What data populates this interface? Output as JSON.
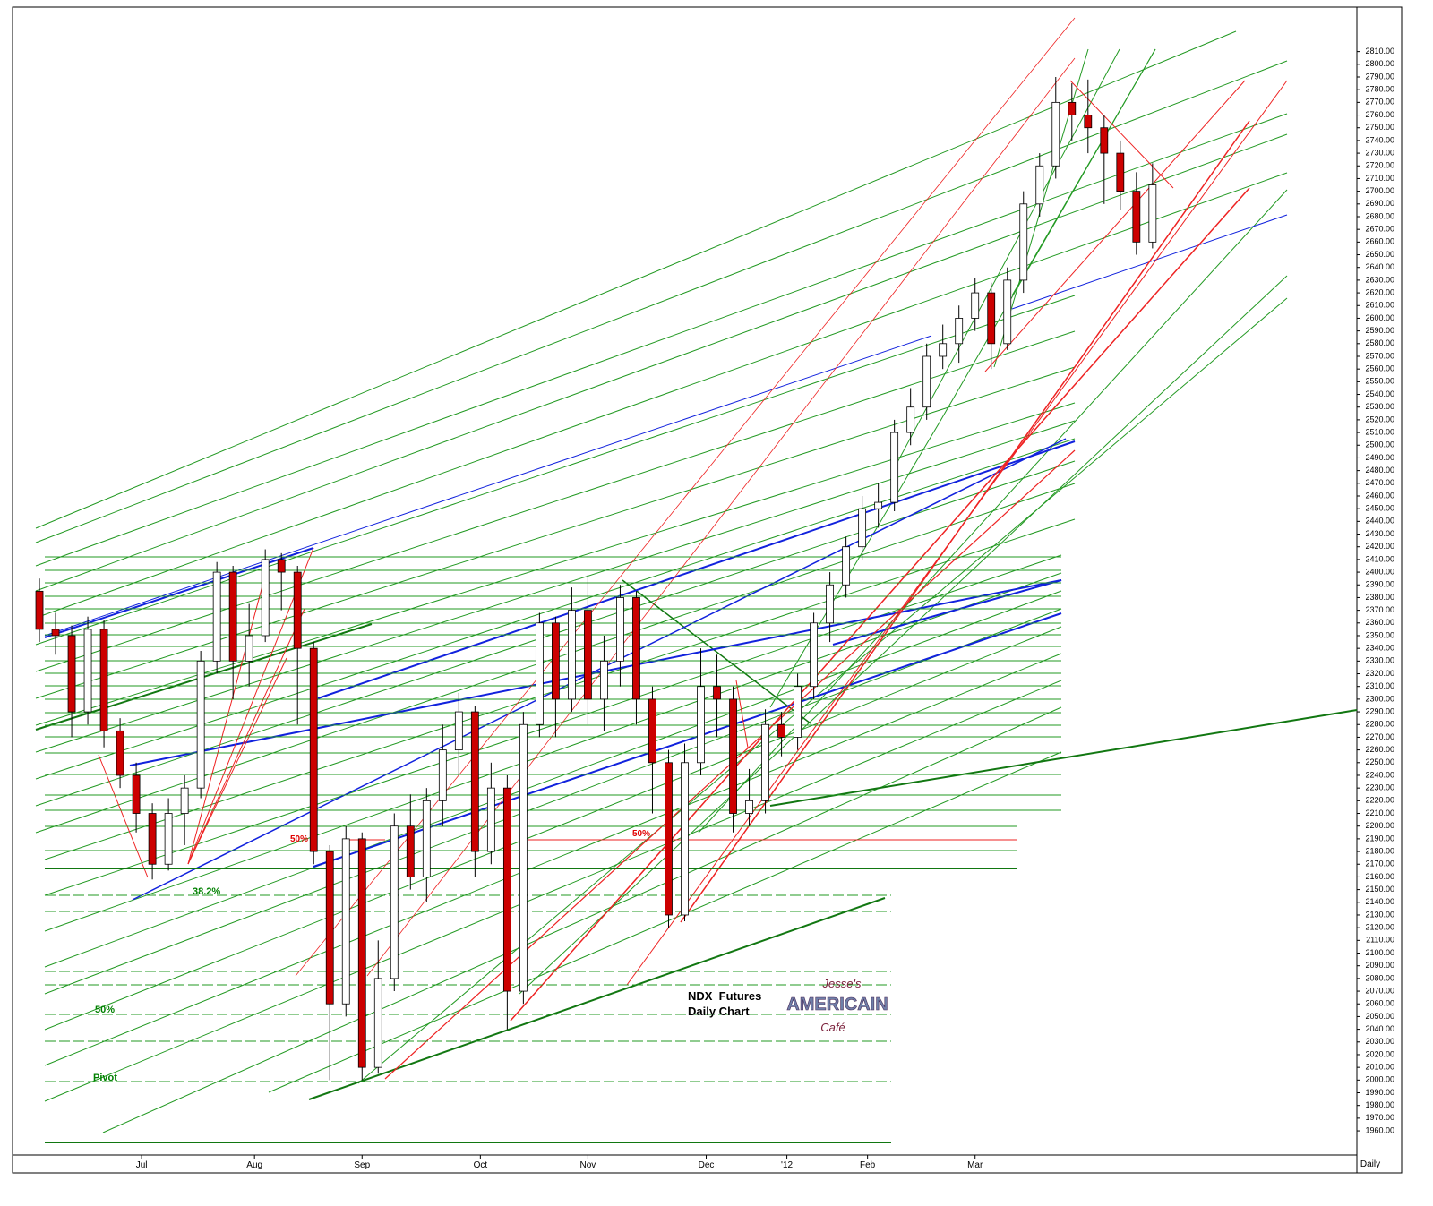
{
  "chart_data": {
    "type": "candlestick",
    "title": "NDX  Futures",
    "subtitle": "Daily Chart",
    "x_label": "Daily",
    "annotations": [
      "50%",
      "50%",
      "38.2%",
      "50%",
      "Pivot"
    ],
    "logo": {
      "line1": "Jesse's",
      "line2": "AMERICAIN",
      "line3": "Café"
    },
    "up_color": "#ffffff",
    "down_color": "#cc0000",
    "grid": false,
    "xlim": [
      0,
      250
    ],
    "ylim": [
      1941,
      2845
    ],
    "xticks": [
      {
        "value": 24,
        "label": "Jul"
      },
      {
        "value": 45,
        "label": "Aug"
      },
      {
        "value": 65,
        "label": "Sep"
      },
      {
        "value": 87,
        "label": "Oct"
      },
      {
        "value": 107,
        "label": "Nov"
      },
      {
        "value": 129,
        "label": "Dec"
      },
      {
        "value": 144,
        "label": "'12"
      },
      {
        "value": 159,
        "label": "Feb"
      },
      {
        "value": 179,
        "label": "Mar"
      }
    ],
    "yticks": [
      {
        "value": 1960,
        "label": "1960.00"
      },
      {
        "value": 1970,
        "label": "1970.00"
      },
      {
        "value": 1980,
        "label": "1980.00"
      },
      {
        "value": 1990,
        "label": "1990.00"
      },
      {
        "value": 2000,
        "label": "2000.00"
      },
      {
        "value": 2010,
        "label": "2010.00"
      },
      {
        "value": 2020,
        "label": "2020.00"
      },
      {
        "value": 2030,
        "label": "2030.00"
      },
      {
        "value": 2040,
        "label": "2040.00"
      },
      {
        "value": 2050,
        "label": "2050.00"
      },
      {
        "value": 2060,
        "label": "2060.00"
      },
      {
        "value": 2070,
        "label": "2070.00"
      },
      {
        "value": 2080,
        "label": "2080.00"
      },
      {
        "value": 2090,
        "label": "2090.00"
      },
      {
        "value": 2100,
        "label": "2100.00"
      },
      {
        "value": 2110,
        "label": "2110.00"
      },
      {
        "value": 2120,
        "label": "2120.00"
      },
      {
        "value": 2130,
        "label": "2130.00"
      },
      {
        "value": 2140,
        "label": "2140.00"
      },
      {
        "value": 2150,
        "label": "2150.00"
      },
      {
        "value": 2160,
        "label": "2160.00"
      },
      {
        "value": 2170,
        "label": "2170.00"
      },
      {
        "value": 2180,
        "label": "2180.00"
      },
      {
        "value": 2190,
        "label": "2190.00"
      },
      {
        "value": 2200,
        "label": "2200.00"
      },
      {
        "value": 2210,
        "label": "2210.00"
      },
      {
        "value": 2220,
        "label": "2220.00"
      },
      {
        "value": 2230,
        "label": "2230.00"
      },
      {
        "value": 2240,
        "label": "2240.00"
      },
      {
        "value": 2250,
        "label": "2250.00"
      },
      {
        "value": 2260,
        "label": "2260.00"
      },
      {
        "value": 2270,
        "label": "2270.00"
      },
      {
        "value": 2280,
        "label": "2280.00"
      },
      {
        "value": 2290,
        "label": "2290.00"
      },
      {
        "value": 2300,
        "label": "2300.00"
      },
      {
        "value": 2310,
        "label": "2310.00"
      },
      {
        "value": 2320,
        "label": "2320.00"
      },
      {
        "value": 2330,
        "label": "2330.00"
      },
      {
        "value": 2340,
        "label": "2340.00"
      },
      {
        "value": 2350,
        "label": "2350.00"
      },
      {
        "value": 2360,
        "label": "2360.00"
      },
      {
        "value": 2370,
        "label": "2370.00"
      },
      {
        "value": 2380,
        "label": "2380.00"
      },
      {
        "value": 2390,
        "label": "2390.00"
      },
      {
        "value": 2400,
        "label": "2400.00"
      },
      {
        "value": 2410,
        "label": "2410.00"
      },
      {
        "value": 2420,
        "label": "2420.00"
      },
      {
        "value": 2430,
        "label": "2430.00"
      },
      {
        "value": 2440,
        "label": "2440.00"
      },
      {
        "value": 2450,
        "label": "2450.00"
      },
      {
        "value": 2460,
        "label": "2460.00"
      },
      {
        "value": 2470,
        "label": "2470.00"
      },
      {
        "value": 2480,
        "label": "2480.00"
      },
      {
        "value": 2490,
        "label": "2490.00"
      },
      {
        "value": 2500,
        "label": "2500.00"
      },
      {
        "value": 2510,
        "label": "2510.00"
      },
      {
        "value": 2520,
        "label": "2520.00"
      },
      {
        "value": 2530,
        "label": "2530.00"
      },
      {
        "value": 2540,
        "label": "2540.00"
      },
      {
        "value": 2550,
        "label": "2550.00"
      },
      {
        "value": 2560,
        "label": "2560.00"
      },
      {
        "value": 2570,
        "label": "2570.00"
      },
      {
        "value": 2580,
        "label": "2580.00"
      },
      {
        "value": 2590,
        "label": "2590.00"
      },
      {
        "value": 2600,
        "label": "2600.00"
      },
      {
        "value": 2610,
        "label": "2610.00"
      },
      {
        "value": 2620,
        "label": "2620.00"
      },
      {
        "value": 2630,
        "label": "2630.00"
      },
      {
        "value": 2640,
        "label": "2640.00"
      },
      {
        "value": 2650,
        "label": "2650.00"
      },
      {
        "value": 2660,
        "label": "2660.00"
      },
      {
        "value": 2670,
        "label": "2670.00"
      },
      {
        "value": 2680,
        "label": "2680.00"
      },
      {
        "value": 2690,
        "label": "2690.00"
      },
      {
        "value": 2700,
        "label": "2700.00"
      },
      {
        "value": 2710,
        "label": "2710.00"
      },
      {
        "value": 2720,
        "label": "2720.00"
      },
      {
        "value": 2730,
        "label": "2730.00"
      },
      {
        "value": 2740,
        "label": "2740.00"
      },
      {
        "value": 2750,
        "label": "2750.00"
      },
      {
        "value": 2760,
        "label": "2760.00"
      },
      {
        "value": 2770,
        "label": "2770.00"
      },
      {
        "value": 2780,
        "label": "2780.00"
      },
      {
        "value": 2790,
        "label": "2790.00"
      },
      {
        "value": 2800,
        "label": "2800.00"
      },
      {
        "value": 2810,
        "label": "2810.00"
      }
    ],
    "x": [
      5,
      8,
      11,
      14,
      17,
      20,
      23,
      26,
      29,
      32,
      35,
      38,
      41,
      44,
      47,
      50,
      53,
      56,
      59,
      62,
      65,
      68,
      71,
      74,
      77,
      80,
      83,
      86,
      89,
      92,
      95,
      98,
      101,
      104,
      107,
      110,
      113,
      116,
      119,
      122,
      125,
      128,
      131,
      134,
      137,
      140,
      143,
      146,
      149,
      152,
      155,
      158,
      161,
      164,
      167,
      170,
      173,
      176,
      179,
      182,
      185,
      188,
      191,
      194,
      197,
      200,
      203,
      206,
      209,
      212
    ],
    "open": [
      2385,
      2355,
      2350,
      2290,
      2355,
      2275,
      2240,
      2210,
      2170,
      2210,
      2230,
      2330,
      2400,
      2330,
      2350,
      2410,
      2400,
      2340,
      2180,
      2060,
      2190,
      2010,
      2080,
      2200,
      2160,
      2220,
      2260,
      2290,
      2180,
      2230,
      2070,
      2280,
      2360,
      2300,
      2370,
      2300,
      2330,
      2380,
      2300,
      2250,
      2130,
      2250,
      2310,
      2300,
      2210,
      2220,
      2280,
      2270,
      2310,
      2360,
      2390,
      2420,
      2450,
      2455,
      2510,
      2530,
      2570,
      2580,
      2600,
      2620,
      2580,
      2630,
      2690,
      2720,
      2770,
      2760,
      2750,
      2730,
      2700,
      2660
    ],
    "high": [
      2395,
      2368,
      2358,
      2365,
      2362,
      2285,
      2250,
      2218,
      2222,
      2240,
      2338,
      2408,
      2405,
      2375,
      2418,
      2415,
      2405,
      2345,
      2185,
      2200,
      2195,
      2110,
      2210,
      2225,
      2230,
      2280,
      2305,
      2295,
      2250,
      2240,
      2290,
      2368,
      2365,
      2388,
      2398,
      2350,
      2390,
      2385,
      2310,
      2260,
      2265,
      2340,
      2335,
      2310,
      2245,
      2292,
      2290,
      2320,
      2368,
      2400,
      2428,
      2460,
      2470,
      2520,
      2545,
      2580,
      2595,
      2610,
      2632,
      2628,
      2640,
      2700,
      2730,
      2790,
      2785,
      2788,
      2760,
      2740,
      2715,
      2722
    ],
    "low": [
      2345,
      2335,
      2270,
      2280,
      2262,
      2230,
      2195,
      2158,
      2165,
      2185,
      2222,
      2320,
      2300,
      2310,
      2345,
      2370,
      2280,
      2170,
      2000,
      2050,
      2000,
      2005,
      2070,
      2150,
      2140,
      2200,
      2240,
      2160,
      2170,
      2040,
      2060,
      2270,
      2270,
      2290,
      2280,
      2275,
      2310,
      2280,
      2210,
      2120,
      2125,
      2240,
      2270,
      2195,
      2200,
      2210,
      2255,
      2260,
      2300,
      2345,
      2380,
      2410,
      2435,
      2448,
      2500,
      2520,
      2560,
      2565,
      2590,
      2560,
      2575,
      2620,
      2680,
      2710,
      2740,
      2730,
      2690,
      2685,
      2650,
      2655
    ],
    "close": [
      2355,
      2350,
      2290,
      2355,
      2275,
      2240,
      2210,
      2170,
      2210,
      2230,
      2330,
      2400,
      2330,
      2350,
      2410,
      2400,
      2340,
      2180,
      2060,
      2190,
      2010,
      2080,
      2200,
      2160,
      2220,
      2260,
      2290,
      2180,
      2230,
      2070,
      2280,
      2360,
      2300,
      2370,
      2300,
      2330,
      2380,
      2300,
      2250,
      2130,
      2250,
      2310,
      2300,
      2210,
      2220,
      2280,
      2270,
      2310,
      2360,
      2390,
      2420,
      2450,
      2455,
      2510,
      2530,
      2570,
      2580,
      2600,
      2620,
      2580,
      2630,
      2690,
      2720,
      2770,
      2760,
      2750,
      2730,
      2700,
      2660,
      2705
    ]
  }
}
